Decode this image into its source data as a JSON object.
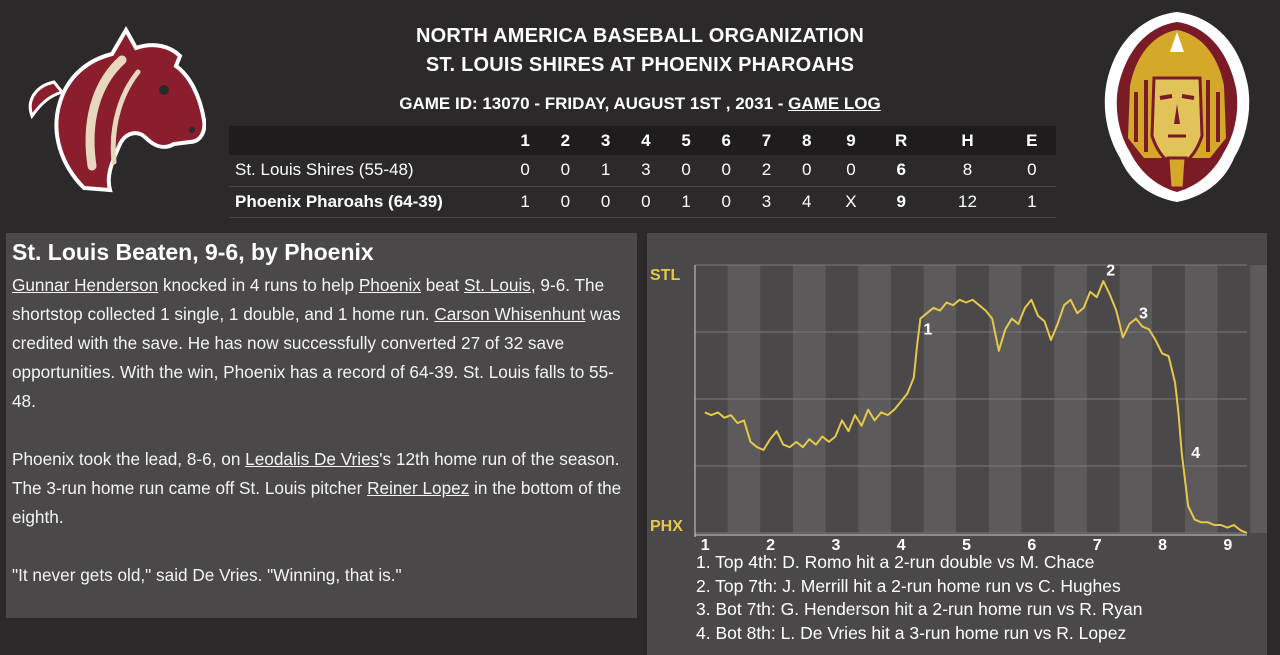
{
  "header": {
    "org": "NORTH AMERICA BASEBALL ORGANIZATION",
    "matchup": "ST. LOUIS SHIRES AT PHOENIX PHAROAHS",
    "game_info": "GAME ID: 13070 - FRIDAY, AUGUST 1ST , 2031 - ",
    "game_log_link": "GAME LOG"
  },
  "logos": {
    "away": "horse-head-logo",
    "home": "pharaoh-head-logo"
  },
  "linescore": {
    "headers": [
      "",
      "1",
      "2",
      "3",
      "4",
      "5",
      "6",
      "7",
      "8",
      "9",
      "R",
      "H",
      "E"
    ],
    "rows": [
      {
        "team": "St. Louis Shires (55-48)",
        "cells": [
          "0",
          "0",
          "1",
          "3",
          "0",
          "0",
          "2",
          "0",
          "0",
          "6",
          "8",
          "0"
        ]
      },
      {
        "team": "Phoenix Pharoahs (64-39)",
        "cells": [
          "1",
          "0",
          "0",
          "0",
          "1",
          "0",
          "3",
          "4",
          "X",
          "9",
          "12",
          "1"
        ]
      }
    ]
  },
  "recap": {
    "headline": "St. Louis Beaten, 9-6, by Phoenix",
    "p1": {
      "link_player": "Gunnar Henderson",
      "t1": " knocked in 4 runs to help ",
      "link_team1": "Phoenix",
      "t2": " beat ",
      "link_team2": "St. Louis",
      "t3": ", 9-6. The shortstop collected 1 single, 1 double, and 1 home run. ",
      "link_player2": "Carson Whisenhunt",
      "t4": " was credited with the save. He has now successfully converted 27 of 32 save opportunities. With the win, Phoenix has a record of 64-39. St. Louis falls to 55-48."
    },
    "p2": {
      "t1": "Phoenix took the lead, 8-6, on ",
      "link_player": "Leodalis De Vries",
      "t2": "'s 12th home run of the season. The 3-run home run came off St. Louis pitcher ",
      "link_pitcher": "Reiner Lopez",
      "t3": " in the bottom of the eighth."
    },
    "p3": "\"It never gets old,\" said De Vries. \"Winning, that is.\""
  },
  "chart_data": {
    "type": "line",
    "top_label": "STL",
    "bottom_label": "PHX",
    "x_ticks": [
      "1",
      "2",
      "3",
      "4",
      "5",
      "6",
      "7",
      "8",
      "9"
    ],
    "xlim": [
      1,
      9.3
    ],
    "ylim": [
      0,
      100
    ],
    "line_color": "#e5c84a",
    "band_colors": [
      "#4a4848",
      "#5c5a5a"
    ],
    "series": [
      {
        "values": [
          [
            1.0,
            45
          ],
          [
            1.1,
            44
          ],
          [
            1.2,
            45
          ],
          [
            1.3,
            43
          ],
          [
            1.4,
            44
          ],
          [
            1.5,
            41
          ],
          [
            1.6,
            42
          ],
          [
            1.7,
            34
          ],
          [
            1.8,
            32
          ],
          [
            1.9,
            31
          ],
          [
            2.0,
            35
          ],
          [
            2.1,
            38
          ],
          [
            2.2,
            33
          ],
          [
            2.3,
            32
          ],
          [
            2.4,
            34
          ],
          [
            2.5,
            32
          ],
          [
            2.6,
            35
          ],
          [
            2.7,
            33
          ],
          [
            2.8,
            36
          ],
          [
            2.9,
            34
          ],
          [
            3.0,
            36
          ],
          [
            3.1,
            42
          ],
          [
            3.2,
            38
          ],
          [
            3.3,
            44
          ],
          [
            3.4,
            40
          ],
          [
            3.5,
            46
          ],
          [
            3.6,
            42
          ],
          [
            3.7,
            45
          ],
          [
            3.8,
            44
          ],
          [
            3.9,
            46
          ],
          [
            4.0,
            49
          ],
          [
            4.1,
            52
          ],
          [
            4.2,
            58
          ],
          [
            4.25,
            70
          ],
          [
            4.3,
            80
          ],
          [
            4.4,
            82
          ],
          [
            4.5,
            84
          ],
          [
            4.6,
            83
          ],
          [
            4.7,
            86
          ],
          [
            4.8,
            85
          ],
          [
            4.9,
            87
          ],
          [
            5.0,
            86
          ],
          [
            5.1,
            87
          ],
          [
            5.2,
            85
          ],
          [
            5.3,
            83
          ],
          [
            5.4,
            80
          ],
          [
            5.5,
            68
          ],
          [
            5.6,
            76
          ],
          [
            5.7,
            80
          ],
          [
            5.8,
            78
          ],
          [
            5.9,
            84
          ],
          [
            6.0,
            87
          ],
          [
            6.1,
            81
          ],
          [
            6.2,
            79
          ],
          [
            6.3,
            72
          ],
          [
            6.4,
            78
          ],
          [
            6.5,
            85
          ],
          [
            6.6,
            87
          ],
          [
            6.7,
            82
          ],
          [
            6.8,
            84
          ],
          [
            6.9,
            90
          ],
          [
            7.0,
            88
          ],
          [
            7.1,
            94
          ],
          [
            7.2,
            89
          ],
          [
            7.3,
            83
          ],
          [
            7.4,
            73
          ],
          [
            7.5,
            78
          ],
          [
            7.6,
            80
          ],
          [
            7.7,
            77
          ],
          [
            7.8,
            76
          ],
          [
            7.9,
            72
          ],
          [
            8.0,
            67
          ],
          [
            8.1,
            66
          ],
          [
            8.2,
            56
          ],
          [
            8.25,
            45
          ],
          [
            8.3,
            30
          ],
          [
            8.4,
            10
          ],
          [
            8.5,
            5
          ],
          [
            8.6,
            4
          ],
          [
            8.7,
            4
          ],
          [
            8.8,
            3
          ],
          [
            8.9,
            3
          ],
          [
            9.0,
            2
          ],
          [
            9.1,
            3
          ],
          [
            9.2,
            1
          ],
          [
            9.3,
            0
          ]
        ]
      }
    ],
    "markers": [
      {
        "label": "1",
        "x": 4.3,
        "y": 74
      },
      {
        "label": "2",
        "x": 7.1,
        "y": 96
      },
      {
        "label": "3",
        "x": 7.6,
        "y": 80
      },
      {
        "label": "4",
        "x": 8.4,
        "y": 28
      }
    ],
    "plays": [
      "1. Top 4th: D. Romo hit a 2-run double vs M. Chace",
      "2. Top 7th: J. Merrill hit a 2-run home run vs C. Hughes",
      "3. Bot 7th: G. Henderson hit a 2-run home run vs R. Ryan",
      "4. Bot 8th: L. De Vries hit a 3-run home run vs R. Lopez"
    ]
  }
}
